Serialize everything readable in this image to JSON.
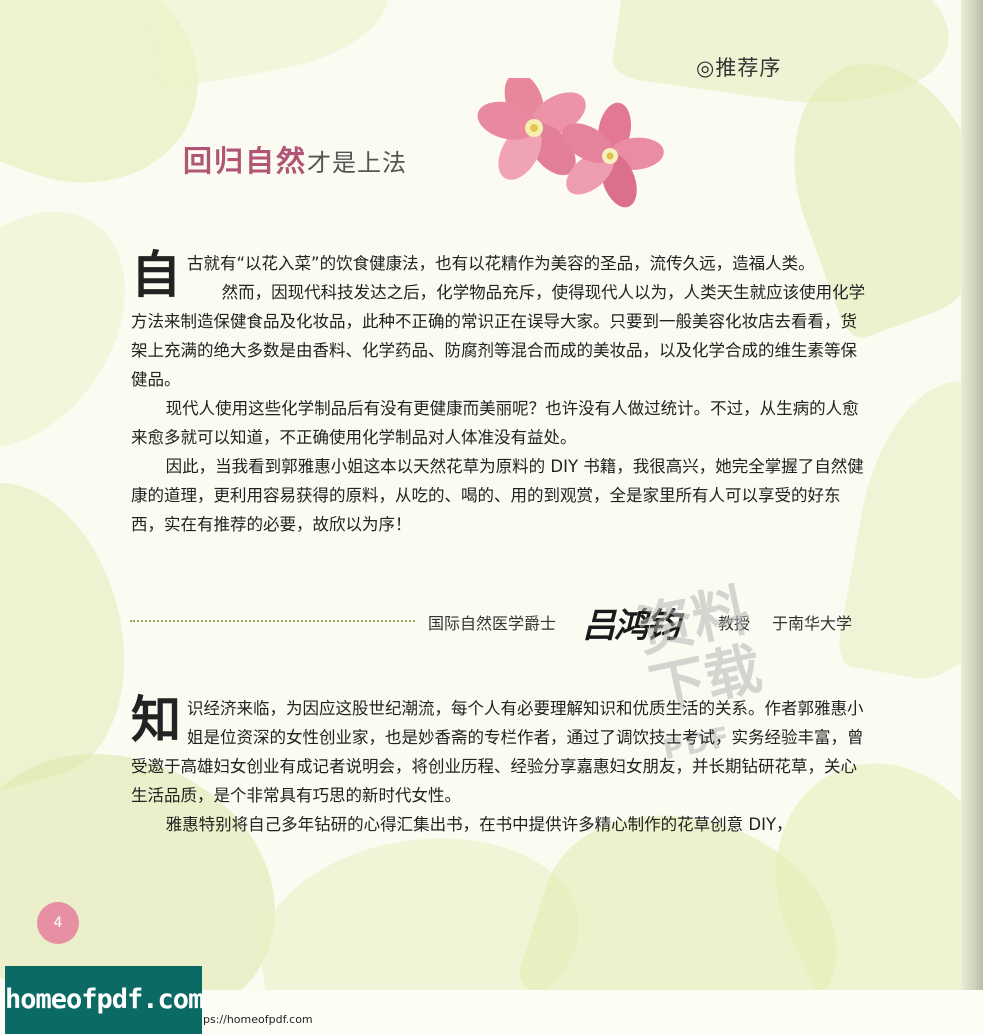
{
  "header": {
    "section_tag": "◎推荐序"
  },
  "title": {
    "strong": "回归自然",
    "light": "才是上法"
  },
  "preface": {
    "dropcap": "自",
    "p1": "古就有“以花入菜”的饮食健康法，也有以花精作为美容的圣品，流传久远，造福人类。",
    "p2": "然而，因现代科技发达之后，化学物品充斥，使得现代人以为，人类天生就应该使用化学方法来制造保健食品及化妆品，此种不正确的常识正在误导大家。只要到一般美容化妆店去看看，货架上充满的绝大多数是由香料、化学药品、防腐剂等混合而成的美妆品，以及化学合成的维生素等保健品。",
    "p3": "现代人使用这些化学制品后有没有更健康而美丽呢？也许没有人做过统计。不过，从生病的人愈来愈多就可以知道，不正确使用化学制品对人体准没有益处。",
    "p4": "因此，当我看到郭雅惠小姐这本以天然花草为原料的 DIY 书籍，我很高兴，她完全掌握了自然健康的道理，更利用容易获得的原料，从吃的、喝的、用的到观赏，全是家里所有人可以享受的好东西，实在有推荐的必要，故欣以为序！"
  },
  "signature": {
    "title": "国际自然医学爵士",
    "name": "吕鸿钧",
    "rank": "教授",
    "university": "于南华大学"
  },
  "intro": {
    "dropcap": "知",
    "p1": "识经济来临，为因应这股世纪潮流，每个人有必要理解知识和优质生活的关系。作者郭雅惠小姐是位资深的女性创业家，也是妙香斋的专栏作者，通过了调饮技士考试，实务经验丰富，曾受邀于高雄妇女创业有成记者说明会，将创业历程、经验分享嘉惠妇女朋友，并长期钻研花草，关心生活品质，是个非常具有巧思的新时代女性。",
    "p2": "雅惠特别将自己多年钻研的心得汇集出书，在书中提供许多精心制作的花草创意 DIY，"
  },
  "page_number": "4",
  "watermark": {
    "text1": "资料",
    "text2": "下载",
    "text3": "PDF"
  },
  "footer": {
    "badge": "homeofpdf.com",
    "url": "ps://homeofpdf.com"
  }
}
